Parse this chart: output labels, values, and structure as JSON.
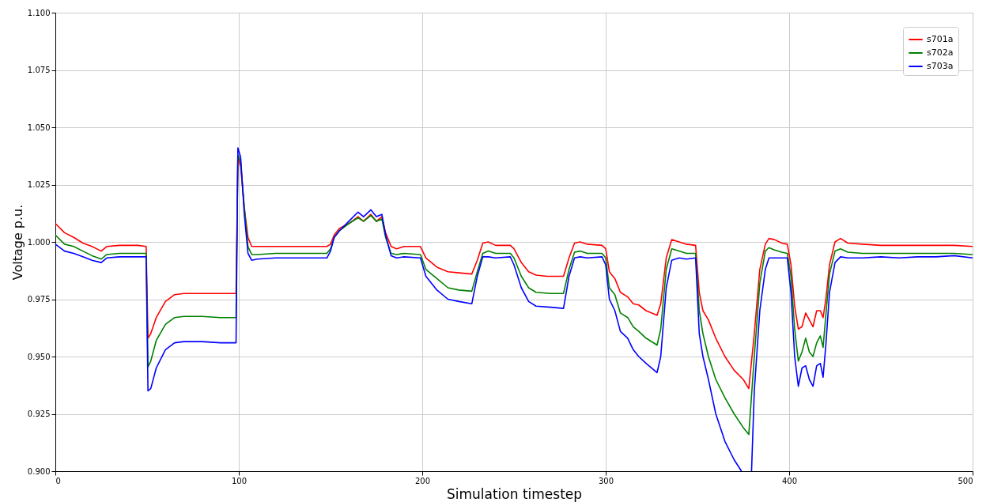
{
  "chart_data": {
    "type": "line",
    "xlabel": "Simulation timestep",
    "ylabel": "Voltage p.u.",
    "xlim": [
      0,
      500
    ],
    "ylim": [
      0.9,
      1.1
    ],
    "xticks": [
      0,
      100,
      200,
      300,
      400,
      500
    ],
    "yticks": [
      {
        "value": 0.9,
        "label": "0.900"
      },
      0.925,
      {
        "value": 0.95,
        "label": "0.950"
      },
      0.975,
      {
        "value": 1.0,
        "label": "1.000"
      },
      1.025,
      {
        "value": 1.05,
        "label": "1.050"
      },
      1.075,
      {
        "value": 1.1,
        "label": "1.100"
      }
    ],
    "grid": true,
    "legend": "top right",
    "line_style": "solid",
    "marker": "none",
    "series": [
      {
        "name": "s701a",
        "color": "#ff0000",
        "x": [
          0,
          5,
          10,
          15,
          20,
          25,
          28,
          35,
          40,
          45,
          49.5,
          50.5,
          52,
          55,
          60,
          65,
          70,
          80,
          90,
          98.5,
          99.5,
          101,
          103,
          105,
          107,
          110,
          120,
          140,
          148,
          150,
          152,
          155,
          160,
          165,
          168,
          172,
          175,
          178,
          180,
          183,
          186,
          190,
          195,
          199,
          202,
          208,
          214,
          220,
          227,
          230,
          233,
          236,
          240,
          248,
          250,
          254,
          258,
          262,
          268,
          272,
          277,
          280,
          283,
          286,
          290,
          298,
          300,
          302,
          305,
          308,
          312,
          315,
          318,
          322,
          328,
          330,
          333,
          336,
          340,
          344,
          349,
          351,
          353,
          356,
          360,
          365,
          370,
          375,
          378,
          381,
          384,
          387,
          389,
          392,
          396,
          399,
          401,
          403,
          405,
          407,
          409,
          411,
          413,
          415,
          417,
          418.5,
          420,
          422,
          425,
          428,
          432,
          440,
          450,
          460,
          470,
          480,
          490,
          500
        ],
        "values": [
          1.008,
          1.004,
          1.002,
          0.9995,
          0.998,
          0.996,
          0.998,
          0.9985,
          0.9985,
          0.9985,
          0.998,
          0.958,
          0.96,
          0.967,
          0.974,
          0.977,
          0.9775,
          0.9775,
          0.9775,
          0.9775,
          1.037,
          1.033,
          1.015,
          1.002,
          0.998,
          0.998,
          0.998,
          0.998,
          0.998,
          0.999,
          1.003,
          1.006,
          1.008,
          1.011,
          1.009,
          1.012,
          1.009,
          1.011,
          1.004,
          0.998,
          0.997,
          0.998,
          0.998,
          0.998,
          0.993,
          0.989,
          0.987,
          0.9865,
          0.986,
          0.992,
          0.9995,
          1.0,
          0.9985,
          0.9985,
          0.997,
          0.991,
          0.987,
          0.9855,
          0.985,
          0.985,
          0.985,
          0.993,
          0.9995,
          1.0,
          0.999,
          0.9985,
          0.997,
          0.987,
          0.984,
          0.978,
          0.976,
          0.973,
          0.9725,
          0.97,
          0.968,
          0.973,
          0.993,
          1.001,
          1.0,
          0.999,
          0.9985,
          0.978,
          0.97,
          0.966,
          0.958,
          0.95,
          0.944,
          0.94,
          0.936,
          0.96,
          0.988,
          0.999,
          1.0015,
          1.001,
          0.9995,
          0.999,
          0.99,
          0.972,
          0.962,
          0.963,
          0.969,
          0.966,
          0.963,
          0.97,
          0.97,
          0.967,
          0.975,
          0.99,
          1.0,
          1.0015,
          0.9995,
          0.999,
          0.9985,
          0.9985,
          0.9985,
          0.9985,
          0.9985,
          0.998
        ]
      },
      {
        "name": "s702a",
        "color": "#008000",
        "x": [
          0,
          5,
          10,
          15,
          20,
          25,
          28,
          35,
          40,
          49.5,
          50.5,
          52,
          55,
          60,
          65,
          70,
          80,
          90,
          98.5,
          99.5,
          101,
          103,
          105,
          107,
          110,
          120,
          148,
          150,
          152,
          155,
          160,
          165,
          168,
          172,
          175,
          178,
          180,
          183,
          186,
          190,
          199,
          202,
          208,
          214,
          220,
          227,
          230,
          233,
          236,
          240,
          248,
          250,
          254,
          258,
          262,
          270,
          277,
          280,
          283,
          286,
          290,
          298,
          300,
          302,
          305,
          308,
          312,
          315,
          318,
          322,
          328,
          330,
          333,
          336,
          340,
          344,
          349,
          351,
          353,
          356,
          360,
          365,
          370,
          375,
          378,
          381,
          384,
          387,
          389,
          392,
          396,
          399,
          401,
          403,
          405,
          407,
          409,
          411,
          413,
          415,
          417,
          418.5,
          420,
          422,
          425,
          428,
          432,
          440,
          450,
          460,
          470,
          480,
          490,
          500
        ],
        "values": [
          1.003,
          0.999,
          0.998,
          0.996,
          0.994,
          0.9925,
          0.9945,
          0.995,
          0.995,
          0.995,
          0.9455,
          0.948,
          0.957,
          0.964,
          0.967,
          0.9675,
          0.9675,
          0.967,
          0.967,
          1.038,
          1.035,
          1.015,
          0.998,
          0.9945,
          0.9945,
          0.995,
          0.995,
          0.997,
          1.002,
          1.005,
          1.008,
          1.0105,
          1.009,
          1.0115,
          1.009,
          1.01,
          1.002,
          0.995,
          0.9945,
          0.995,
          0.9945,
          0.988,
          0.984,
          0.98,
          0.979,
          0.9785,
          0.987,
          0.995,
          0.996,
          0.995,
          0.995,
          0.993,
          0.985,
          0.98,
          0.978,
          0.9775,
          0.9775,
          0.988,
          0.9955,
          0.996,
          0.995,
          0.995,
          0.993,
          0.98,
          0.977,
          0.969,
          0.967,
          0.963,
          0.961,
          0.958,
          0.955,
          0.962,
          0.988,
          0.997,
          0.996,
          0.995,
          0.995,
          0.97,
          0.96,
          0.95,
          0.94,
          0.932,
          0.925,
          0.919,
          0.916,
          0.95,
          0.982,
          0.996,
          0.9975,
          0.9965,
          0.9955,
          0.995,
          0.985,
          0.962,
          0.948,
          0.952,
          0.958,
          0.952,
          0.95,
          0.956,
          0.959,
          0.954,
          0.968,
          0.986,
          0.996,
          0.997,
          0.9955,
          0.995,
          0.995,
          0.995,
          0.995,
          0.995,
          0.995,
          0.9945
        ]
      },
      {
        "name": "s703a",
        "color": "#0000ff",
        "x": [
          0,
          5,
          10,
          15,
          20,
          25,
          28,
          35,
          40,
          49.5,
          50.5,
          52,
          55,
          60,
          65,
          70,
          80,
          90,
          98.5,
          99.5,
          101,
          103,
          105,
          107,
          110,
          120,
          148,
          150,
          152,
          155,
          160,
          165,
          168,
          172,
          175,
          178,
          180,
          183,
          186,
          190,
          199,
          202,
          208,
          214,
          220,
          227,
          230,
          233,
          236,
          240,
          248,
          250,
          254,
          258,
          262,
          270,
          277,
          280,
          283,
          286,
          290,
          298,
          300,
          302,
          305,
          308,
          312,
          315,
          318,
          322,
          328,
          330,
          333,
          336,
          340,
          344,
          349,
          351,
          353,
          356,
          360,
          365,
          370,
          374,
          376,
          379.5,
          381,
          384,
          387,
          389,
          392,
          399,
          401,
          403,
          405,
          407,
          409,
          411,
          413,
          415,
          417,
          418.5,
          420,
          422,
          425,
          428,
          432,
          440,
          450,
          460,
          470,
          480,
          490,
          500
        ],
        "values": [
          0.999,
          0.996,
          0.995,
          0.9935,
          0.992,
          0.991,
          0.993,
          0.9935,
          0.9935,
          0.9935,
          0.935,
          0.936,
          0.945,
          0.953,
          0.956,
          0.9565,
          0.9565,
          0.956,
          0.956,
          1.041,
          1.037,
          1.012,
          0.995,
          0.992,
          0.9925,
          0.993,
          0.993,
          0.996,
          1.002,
          1.005,
          1.009,
          1.013,
          1.011,
          1.014,
          1.011,
          1.012,
          1.003,
          0.994,
          0.993,
          0.9935,
          0.993,
          0.985,
          0.979,
          0.975,
          0.974,
          0.973,
          0.985,
          0.9935,
          0.9935,
          0.993,
          0.9935,
          0.99,
          0.98,
          0.974,
          0.972,
          0.9715,
          0.971,
          0.985,
          0.993,
          0.9935,
          0.993,
          0.9935,
          0.99,
          0.975,
          0.97,
          0.961,
          0.958,
          0.953,
          0.95,
          0.947,
          0.943,
          0.95,
          0.98,
          0.992,
          0.993,
          0.9925,
          0.993,
          0.96,
          0.95,
          0.94,
          0.925,
          0.913,
          0.905,
          0.9,
          null,
          0.9,
          0.935,
          0.97,
          0.988,
          0.993,
          0.993,
          0.993,
          0.978,
          0.95,
          0.937,
          0.945,
          0.946,
          0.94,
          0.937,
          0.946,
          0.947,
          0.941,
          0.955,
          0.978,
          0.991,
          0.9935,
          0.993,
          0.993,
          0.9935,
          0.993,
          0.9935,
          0.9935,
          0.994,
          0.993
        ]
      }
    ]
  }
}
